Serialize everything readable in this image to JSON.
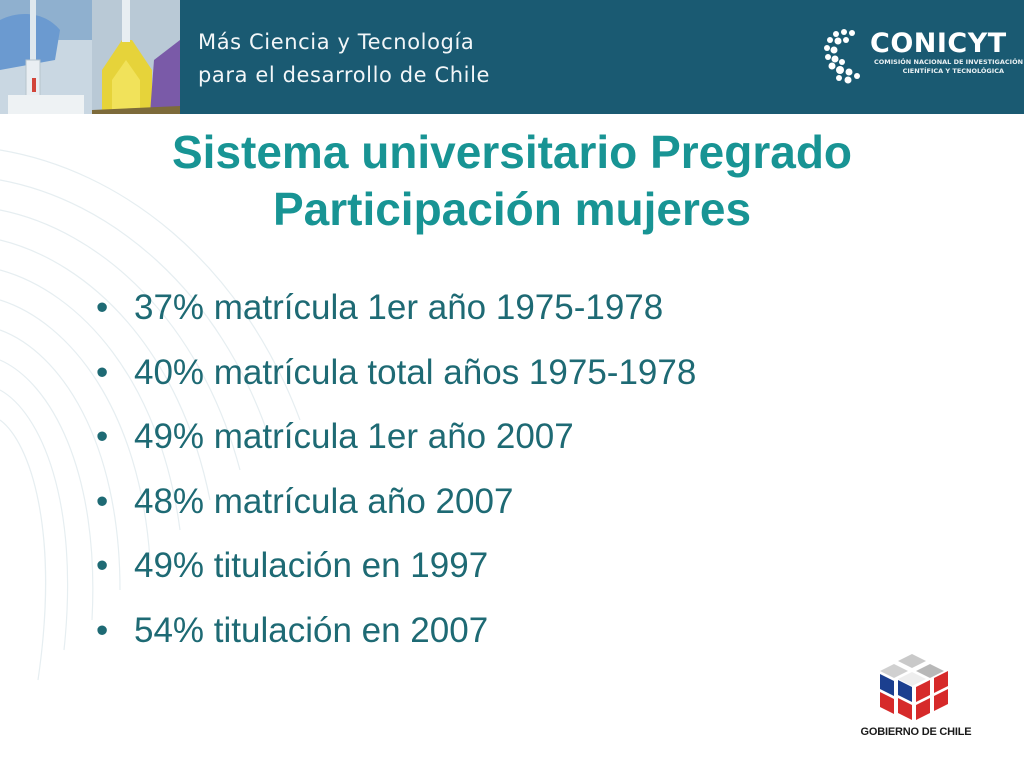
{
  "header": {
    "tagline_line1": "Más Ciencia y Tecnología",
    "tagline_line2": "para el desarrollo de Chile",
    "logo_name": "CONICYT",
    "logo_sub_line1": "COMISIÓN NACIONAL DE INVESTIGACIÓN",
    "logo_sub_line2": "CIENTÍFICA Y TECNOLÓGICA",
    "background_color": "#1a5a72"
  },
  "slide": {
    "title_line1": "Sistema universitario Pregrado",
    "title_line2": "Participación mujeres",
    "bullet_symbol": "•",
    "bullets": [
      "37% matrícula 1er año  1975-1978",
      "40% matrícula total años 1975-1978",
      "49% matrícula 1er año 2007",
      "48% matrícula año 2007",
      "49% titulación en 1997",
      "54% titulación en 2007"
    ],
    "title_color": "#189494",
    "text_color": "#1e6a74"
  },
  "footer": {
    "logo_text": "GOBIERNO DE CHILE"
  }
}
